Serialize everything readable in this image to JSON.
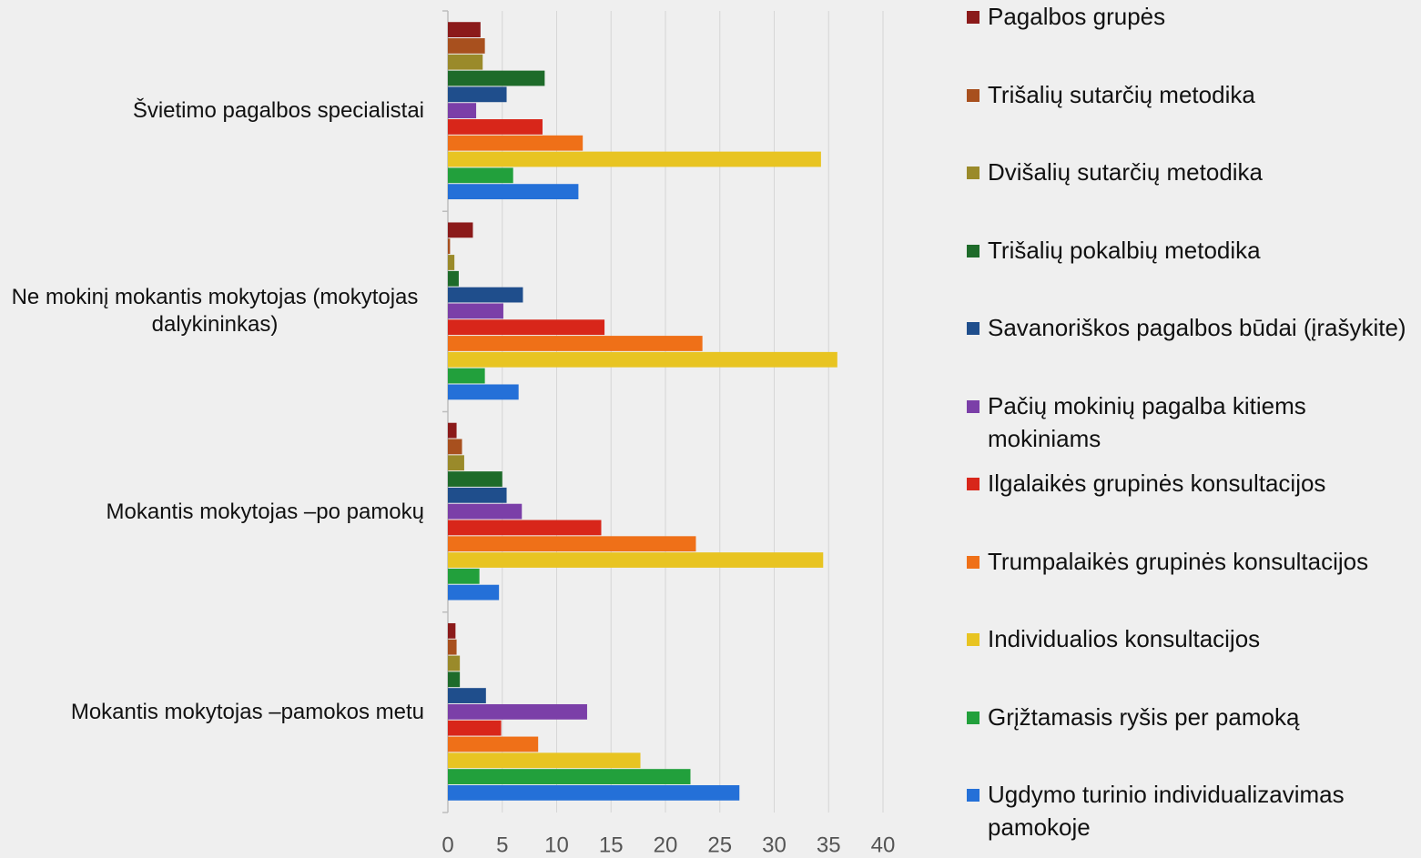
{
  "chart_data": {
    "type": "hbar",
    "categories": [
      "Švietimo pagalbos specialistai",
      "Ne mokinį mokantis mokytojas (mokytojas dalykininkas)",
      "Mokantis mokytojas –po pamokų",
      "Mokantis mokytojas –pamokos metu"
    ],
    "series": [
      {
        "name": "Pagalbos grupės",
        "color": "#8b1a1a",
        "values": [
          3.0,
          2.3,
          0.8,
          0.7
        ]
      },
      {
        "name": "Trišalių sutarčių metodika",
        "color": "#a8501e",
        "values": [
          3.4,
          0.2,
          1.3,
          0.8
        ]
      },
      {
        "name": "Dvišalių sutarčių metodika",
        "color": "#9a8a2a",
        "values": [
          3.2,
          0.6,
          1.5,
          1.1
        ]
      },
      {
        "name": "Trišalių pokalbių metodika",
        "color": "#1e6b2a",
        "values": [
          8.9,
          1.0,
          5.0,
          1.1
        ]
      },
      {
        "name": "Savanoriškos pagalbos būdai (įrašykite)",
        "color": "#1f4e8c",
        "values": [
          5.4,
          6.9,
          5.4,
          3.5
        ]
      },
      {
        "name": "Pačių mokinių pagalba kitiems mokiniams",
        "color": "#7b3fa8",
        "values": [
          2.6,
          5.1,
          6.8,
          12.8
        ]
      },
      {
        "name": "Ilgalaikės grupinės konsultacijos",
        "color": "#d8261a",
        "values": [
          8.7,
          14.4,
          14.1,
          4.9
        ]
      },
      {
        "name": "Trumpalaikės grupinės konsultacijos",
        "color": "#ef7018",
        "values": [
          12.4,
          23.4,
          22.8,
          8.3
        ]
      },
      {
        "name": "Individualios konsultacijos",
        "color": "#e8c422",
        "values": [
          34.3,
          35.8,
          34.5,
          17.7
        ]
      },
      {
        "name": "Grįžtamasis ryšis per pamoką",
        "color": "#22a03c",
        "values": [
          6.0,
          3.4,
          2.9,
          22.3
        ]
      },
      {
        "name": "Ugdymo turinio individualizavimas pamokoje",
        "color": "#2470d8",
        "values": [
          12.0,
          6.5,
          4.7,
          26.8
        ]
      }
    ],
    "xlim": [
      0,
      40
    ],
    "xticks": [
      0,
      5,
      10,
      15,
      20,
      25,
      30,
      35,
      40
    ],
    "grid": true,
    "legend": "right"
  }
}
